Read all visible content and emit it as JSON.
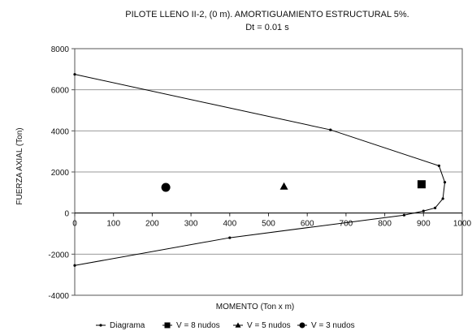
{
  "chart_data": {
    "type": "scatter",
    "title": "PILOTE LLENO II-2, (0 m). AMORTIGUAMIENTO ESTRUCTURAL 5%.",
    "subtitle": "Dt = 0.01 s",
    "xlabel": "MOMENTO (Ton x m)",
    "ylabel": "FUERZA AXIAL (Ton)",
    "xlim": [
      0,
      1000
    ],
    "ylim": [
      -4000,
      8000
    ],
    "x_ticks": [
      0,
      100,
      200,
      300,
      400,
      500,
      600,
      700,
      800,
      900,
      1000
    ],
    "y_ticks": [
      -4000,
      -2000,
      0,
      2000,
      4000,
      6000,
      8000
    ],
    "x_tick_labels": [
      "0",
      "100",
      "200",
      "300",
      "400",
      "500",
      "600",
      "700",
      "800",
      "900",
      "1000"
    ],
    "y_tick_labels": [
      "-4000",
      "-2000",
      "0",
      "2000",
      "4000",
      "6000",
      "8000"
    ],
    "grid": "horizontal",
    "legend_position": "bottom",
    "series": [
      {
        "name": "Diagrama",
        "kind": "line",
        "marker": "dot",
        "color": "#000000",
        "points": [
          [
            0,
            6750
          ],
          [
            660,
            4050
          ],
          [
            940,
            2300
          ],
          [
            955,
            1500
          ],
          [
            950,
            700
          ],
          [
            930,
            250
          ],
          [
            900,
            100
          ],
          [
            850,
            -100
          ],
          [
            400,
            -1200
          ],
          [
            0,
            -2550
          ]
        ]
      },
      {
        "name": "V = 8 nudos",
        "kind": "scatter",
        "marker": "square",
        "color": "#000000",
        "points": [
          [
            895,
            1400
          ]
        ]
      },
      {
        "name": "V = 5 nudos",
        "kind": "scatter",
        "marker": "triangle",
        "color": "#000000",
        "points": [
          [
            540,
            1300
          ]
        ]
      },
      {
        "name": "V = 3 nudos",
        "kind": "scatter",
        "marker": "circle",
        "color": "#000000",
        "points": [
          [
            235,
            1250
          ]
        ]
      }
    ]
  }
}
